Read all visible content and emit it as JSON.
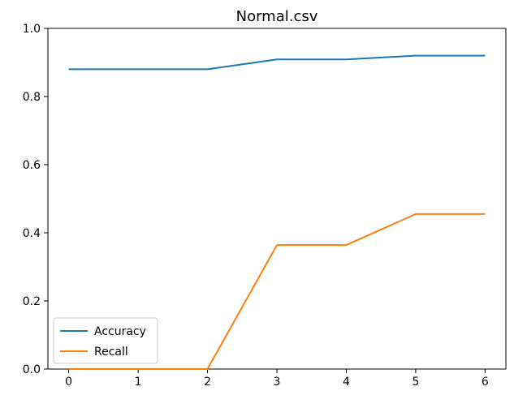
{
  "chart_data": {
    "type": "line",
    "title": "Normal.csv",
    "xlabel": "",
    "ylabel": "",
    "x": [
      0,
      1,
      2,
      3,
      4,
      5,
      6
    ],
    "xlim": [
      -0.3,
      6.3
    ],
    "ylim": [
      0.0,
      1.0
    ],
    "xticks": [
      0,
      1,
      2,
      3,
      4,
      5,
      6
    ],
    "xtick_labels": [
      "0",
      "1",
      "2",
      "3",
      "4",
      "5",
      "6"
    ],
    "yticks": [
      0.0,
      0.2,
      0.4,
      0.6,
      0.8,
      1.0
    ],
    "ytick_labels": [
      "0.0",
      "0.2",
      "0.4",
      "0.6",
      "0.8",
      "1.0"
    ],
    "grid": false,
    "legend_position": "lower-left",
    "series": [
      {
        "name": "Accuracy",
        "color": "#1f77b4",
        "values": [
          0.88,
          0.88,
          0.88,
          0.909,
          0.909,
          0.92,
          0.92
        ]
      },
      {
        "name": "Recall",
        "color": "#ff7f0e",
        "values": [
          0.0,
          0.0,
          0.0,
          0.364,
          0.364,
          0.455,
          0.455
        ]
      }
    ]
  }
}
